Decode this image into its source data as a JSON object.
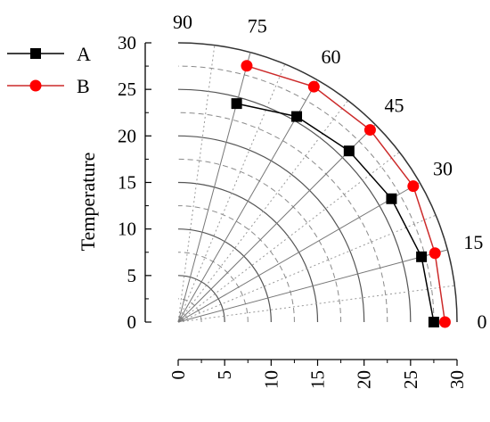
{
  "chart_data": {
    "type": "polar-scatter-line",
    "sector": "quarter",
    "r_range": [
      0,
      30
    ],
    "r_ticks": [
      0,
      5,
      10,
      15,
      20,
      25,
      30
    ],
    "r_minor_step": 2.5,
    "theta_ticks_deg": [
      0,
      15,
      30,
      45,
      60,
      75,
      90
    ],
    "ylabel": "Temperature",
    "series": [
      {
        "name": "A",
        "marker": "square",
        "color": "#000000",
        "line_color": "#000000",
        "points": [
          {
            "theta": 0,
            "r": 27.5
          },
          {
            "theta": 15,
            "r": 27.1
          },
          {
            "theta": 30,
            "r": 26.5
          },
          {
            "theta": 45,
            "r": 26.0
          },
          {
            "theta": 60,
            "r": 25.5
          },
          {
            "theta": 75,
            "r": 24.3
          }
        ]
      },
      {
        "name": "B",
        "marker": "circle",
        "color": "#ff0000",
        "line_color": "#cc2a2a",
        "points": [
          {
            "theta": 0,
            "r": 28.7
          },
          {
            "theta": 15,
            "r": 28.6
          },
          {
            "theta": 30,
            "r": 29.2
          },
          {
            "theta": 45,
            "r": 29.2
          },
          {
            "theta": 60,
            "r": 29.2
          },
          {
            "theta": 75,
            "r": 28.5
          }
        ]
      }
    ],
    "legend_placement": "top-left",
    "grid": true
  }
}
